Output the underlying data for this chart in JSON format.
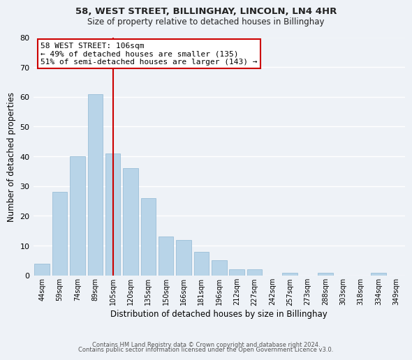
{
  "title": "58, WEST STREET, BILLINGHAY, LINCOLN, LN4 4HR",
  "subtitle": "Size of property relative to detached houses in Billinghay",
  "xlabel": "Distribution of detached houses by size in Billinghay",
  "ylabel": "Number of detached properties",
  "bar_color": "#b8d4e8",
  "bar_edge_color": "#9bbfd8",
  "background_color": "#eef2f7",
  "grid_color": "#ffffff",
  "categories": [
    "44sqm",
    "59sqm",
    "74sqm",
    "89sqm",
    "105sqm",
    "120sqm",
    "135sqm",
    "150sqm",
    "166sqm",
    "181sqm",
    "196sqm",
    "212sqm",
    "227sqm",
    "242sqm",
    "257sqm",
    "273sqm",
    "288sqm",
    "303sqm",
    "318sqm",
    "334sqm",
    "349sqm"
  ],
  "values": [
    4,
    28,
    40,
    61,
    41,
    36,
    26,
    13,
    12,
    8,
    5,
    2,
    2,
    0,
    1,
    0,
    1,
    0,
    0,
    1,
    0
  ],
  "ylim": [
    0,
    80
  ],
  "yticks": [
    0,
    10,
    20,
    30,
    40,
    50,
    60,
    70,
    80
  ],
  "vline_index": 4,
  "vline_color": "#cc0000",
  "annotation_text": "58 WEST STREET: 106sqm\n← 49% of detached houses are smaller (135)\n51% of semi-detached houses are larger (143) →",
  "annotation_box_color": "#ffffff",
  "annotation_box_edge": "#cc0000",
  "footer_line1": "Contains HM Land Registry data © Crown copyright and database right 2024.",
  "footer_line2": "Contains public sector information licensed under the Open Government Licence v3.0."
}
